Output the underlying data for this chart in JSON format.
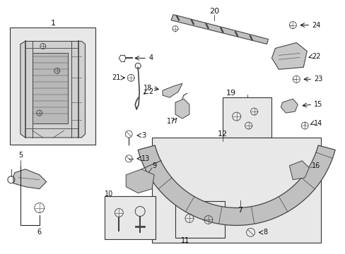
{
  "bg_color": "#ffffff",
  "fig_width": 4.89,
  "fig_height": 3.6,
  "dpi": 100,
  "gray": "#444444",
  "light_gray": "#d8d8d8",
  "box_fill": "#e8e8e8",
  "dark": "#111111"
}
